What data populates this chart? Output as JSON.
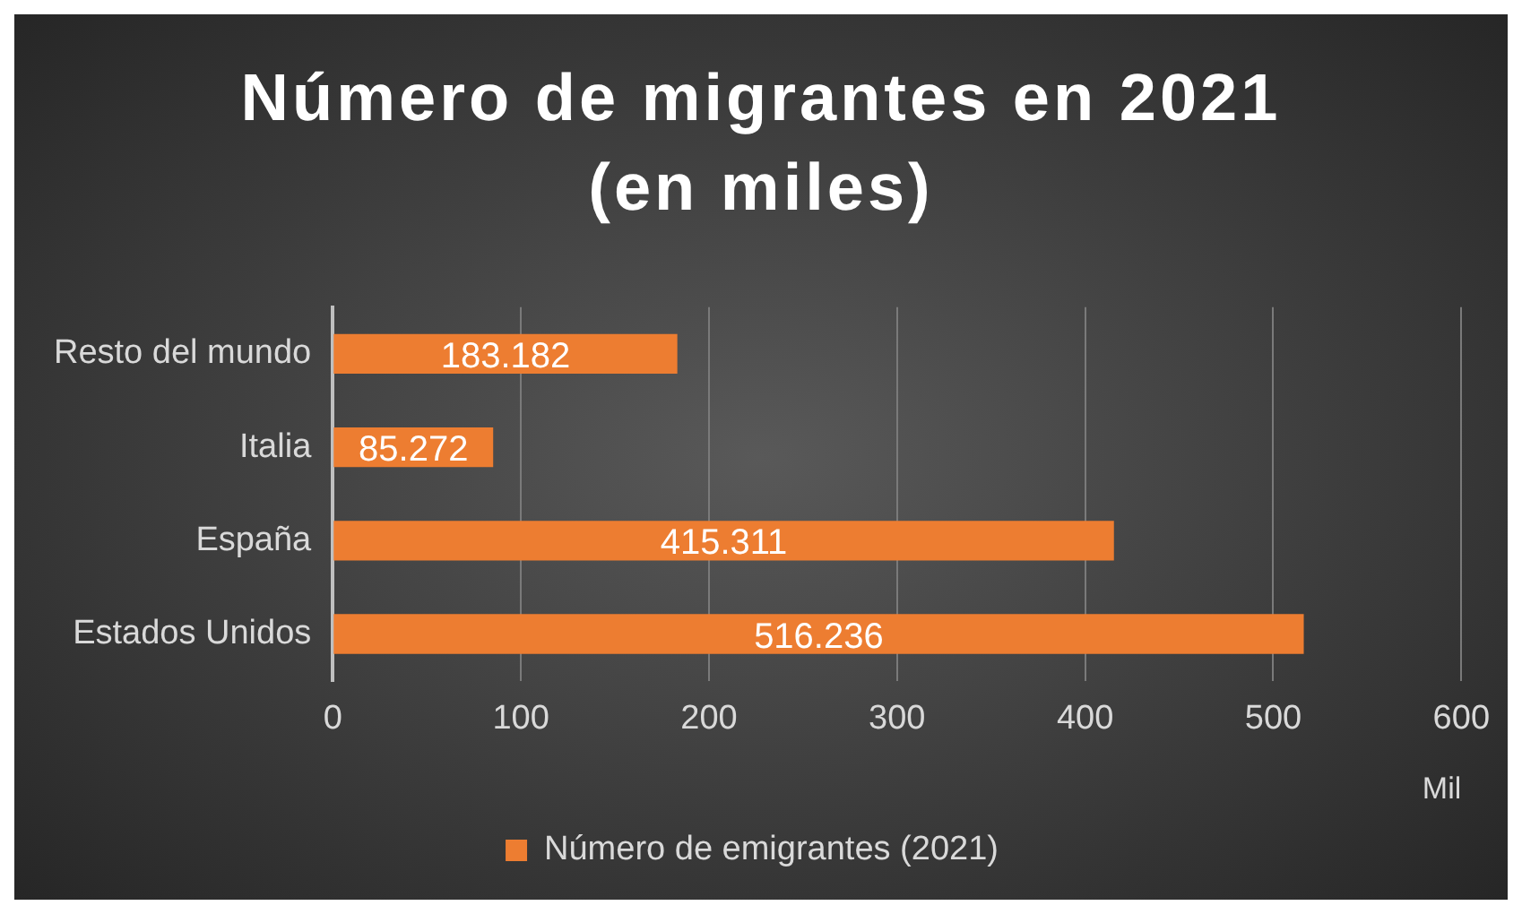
{
  "chart_data": {
    "type": "bar",
    "orientation": "horizontal",
    "title": "Número de migrantes en 2021 (en miles)",
    "xlabel": "Mil",
    "categories": [
      "Resto del mundo",
      "Italia",
      "España",
      "Estados Unidos"
    ],
    "series": [
      {
        "name": "Número de emigrantes (2021)",
        "color": "#ed7d31",
        "values": [
          183.182,
          85.272,
          415.311,
          516.236
        ]
      }
    ],
    "xlim": [
      0,
      600
    ],
    "xticks": [
      0,
      100,
      200,
      300,
      400,
      500,
      600
    ],
    "grid": "x",
    "legend": "bottom",
    "data_labels": true
  }
}
